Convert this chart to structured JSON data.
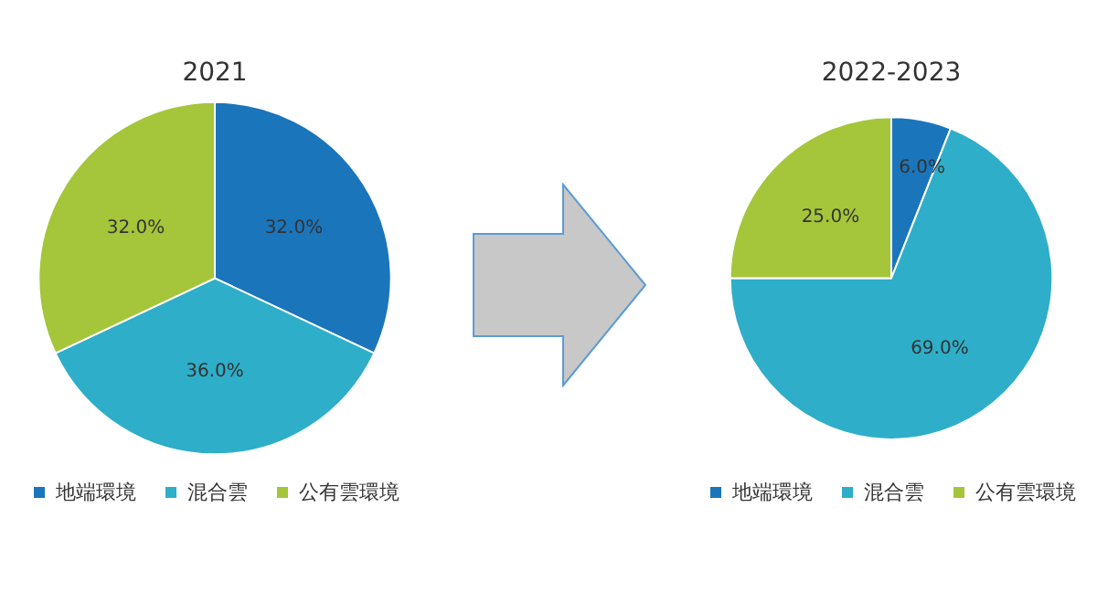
{
  "chart_data": [
    {
      "type": "pie",
      "title": "2021",
      "categories": [
        "地端環境",
        "混合雲",
        "公有雲環境"
      ],
      "values": [
        32,
        36,
        32
      ],
      "colors": [
        "#1b75bb",
        "#2eaec8",
        "#a5c53a"
      ],
      "value_labels": [
        "32.0%",
        "36.0%",
        "32.0%"
      ],
      "legend": "bottom"
    },
    {
      "type": "pie",
      "title": "2022-2023",
      "categories": [
        "地端環境",
        "混合雲",
        "公有雲環境"
      ],
      "values": [
        6,
        69,
        25
      ],
      "colors": [
        "#1b75bb",
        "#2eaec8",
        "#a5c53a"
      ],
      "value_labels": [
        "6.0%",
        "69.0%",
        "25.0%"
      ],
      "legend": "bottom"
    }
  ]
}
